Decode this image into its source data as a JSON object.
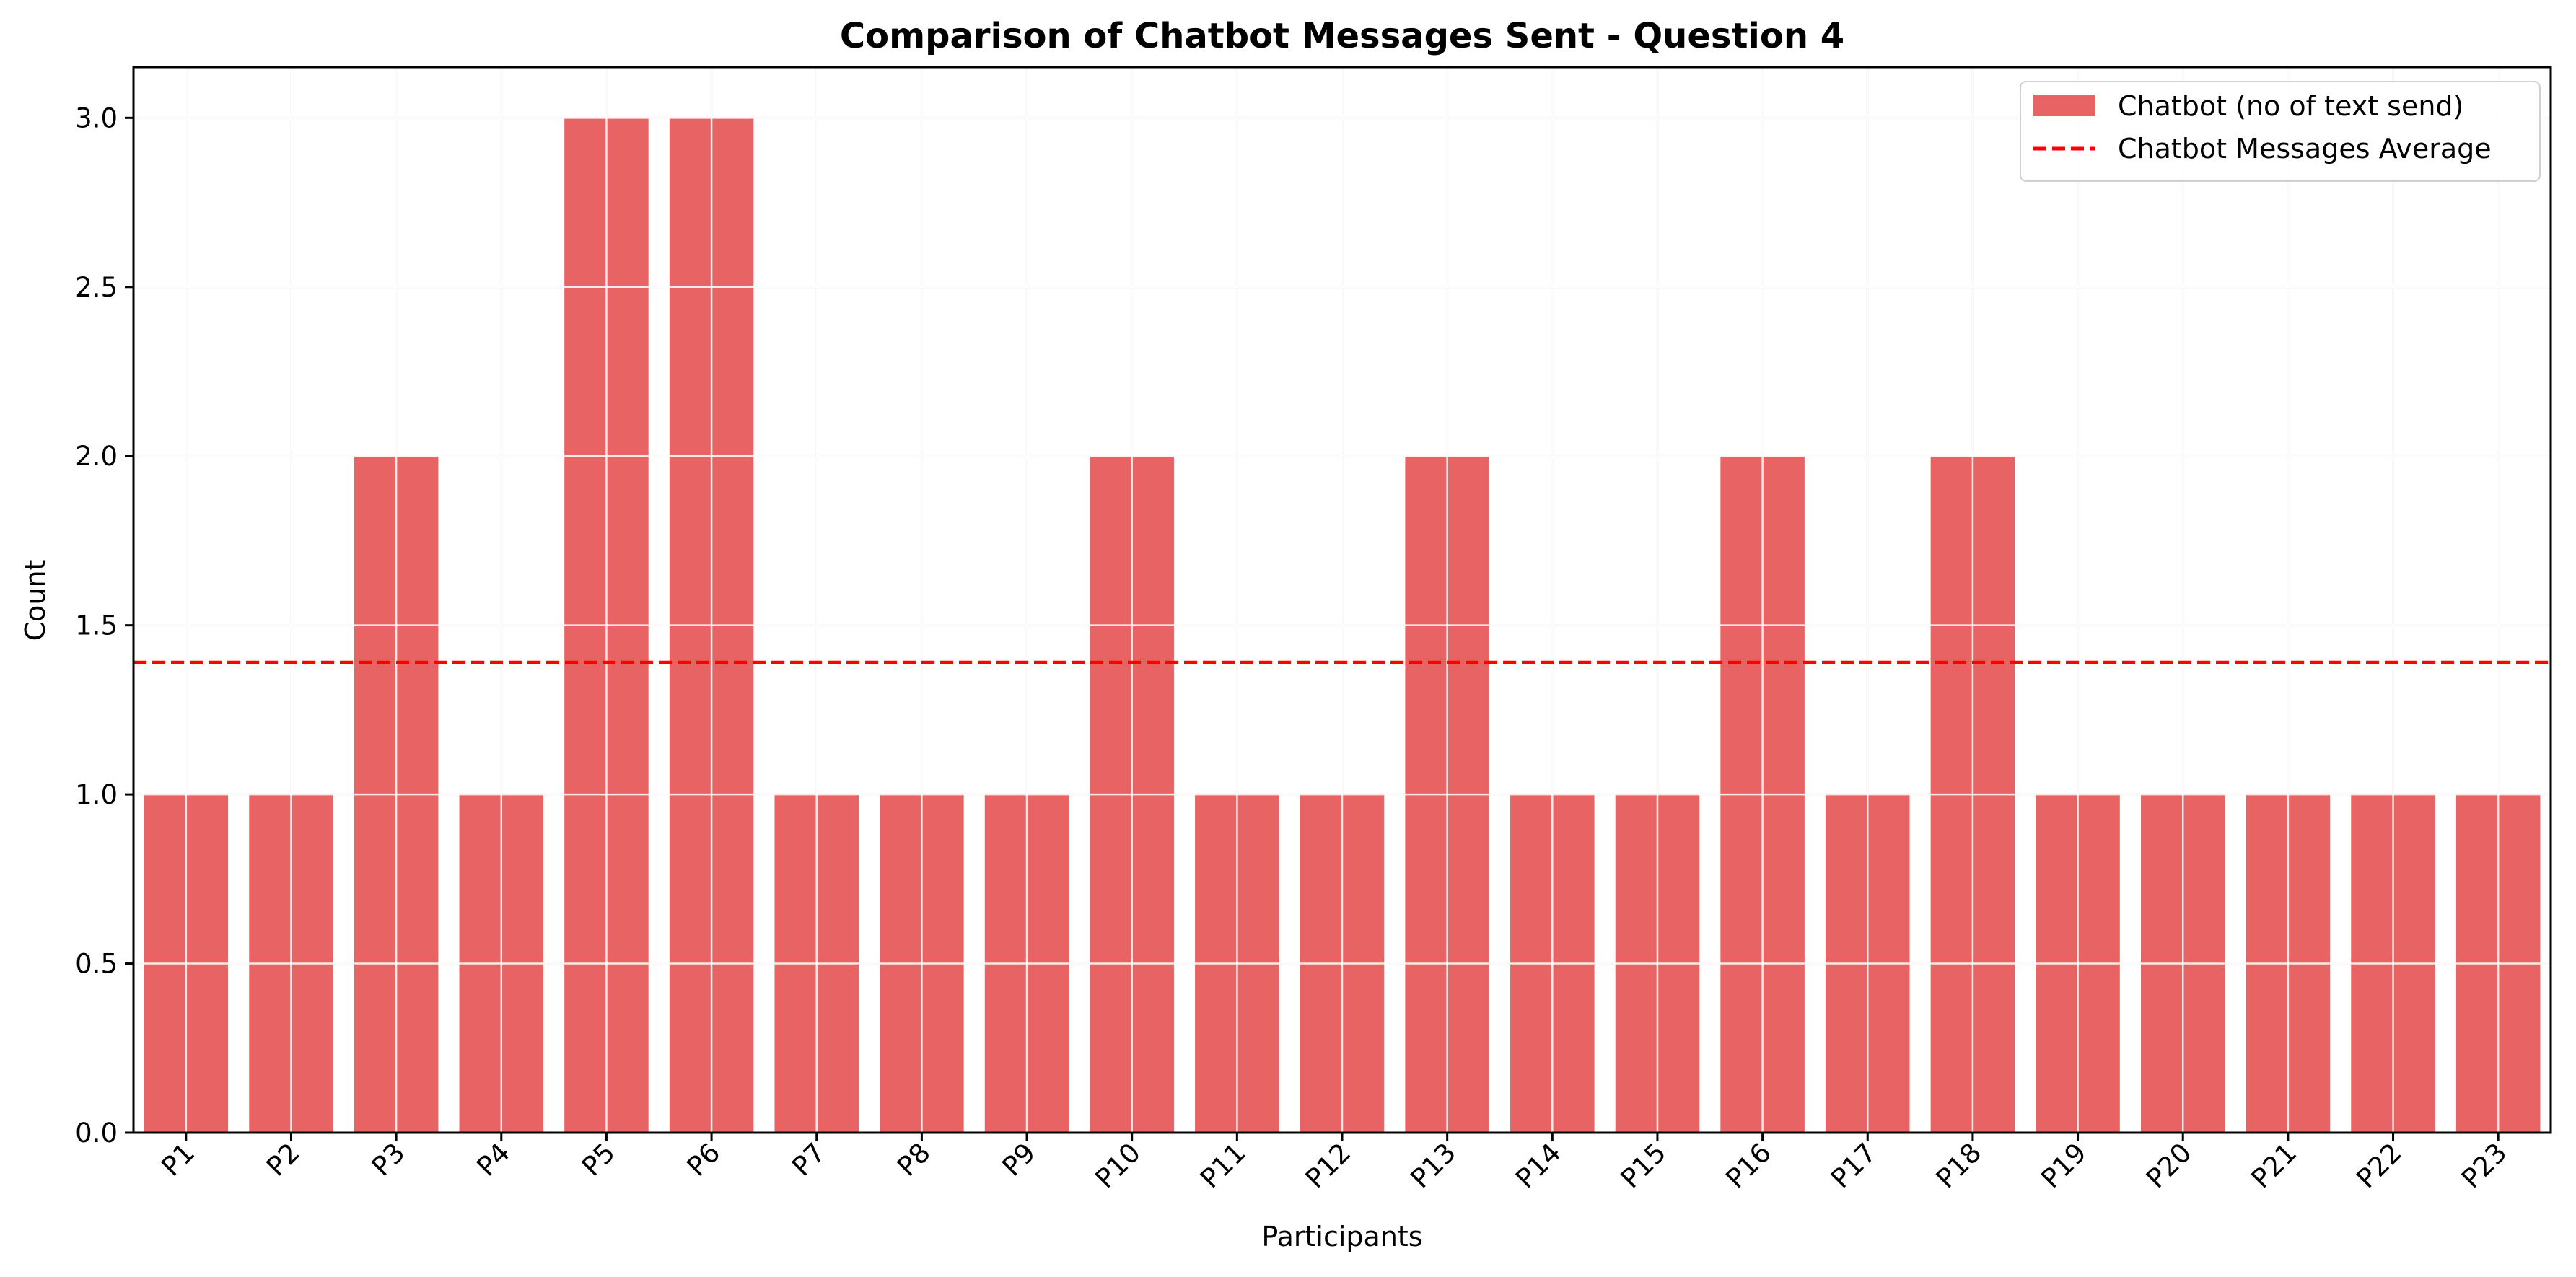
{
  "chart_data": {
    "type": "bar",
    "title": "Comparison of Chatbot Messages Sent - Question 4",
    "xlabel": "Participants",
    "ylabel": "Count",
    "categories": [
      "P1",
      "P2",
      "P3",
      "P4",
      "P5",
      "P6",
      "P7",
      "P8",
      "P9",
      "P10",
      "P11",
      "P12",
      "P13",
      "P14",
      "P15",
      "P16",
      "P17",
      "P18",
      "P19",
      "P20",
      "P21",
      "P22",
      "P23"
    ],
    "series": [
      {
        "name": "Chatbot (no of text send)",
        "color": "#e86464",
        "values": [
          1,
          1,
          2,
          1,
          3,
          3,
          1,
          1,
          1,
          2,
          1,
          1,
          2,
          1,
          1,
          2,
          1,
          2,
          1,
          1,
          1,
          1,
          1
        ]
      }
    ],
    "average_line": {
      "name": "Chatbot Messages Average",
      "value": 1.39,
      "color": "#ff0000",
      "style": "dashed"
    },
    "ylim": [
      0,
      3.15
    ],
    "yticks": [
      0.0,
      0.5,
      1.0,
      1.5,
      2.0,
      2.5,
      3.0
    ],
    "ytick_labels": [
      "0.0",
      "0.5",
      "1.0",
      "1.5",
      "2.0",
      "2.5",
      "3.0"
    ],
    "grid": true,
    "legend_position": "top-right",
    "xtick_rotation": 45
  }
}
